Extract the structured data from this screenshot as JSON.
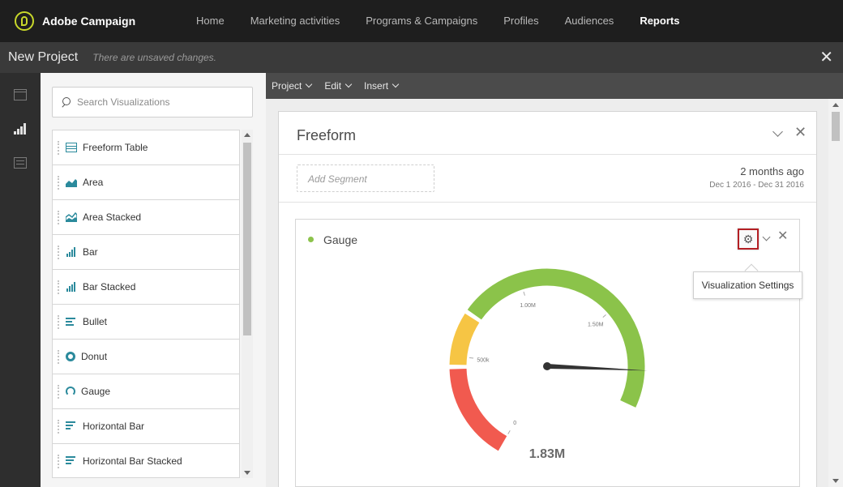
{
  "app": {
    "brand_name": "Adobe Campaign",
    "nav": [
      {
        "label": "Home",
        "active": false
      },
      {
        "label": "Marketing activities",
        "active": false
      },
      {
        "label": "Programs & Campaigns",
        "active": false
      },
      {
        "label": "Profiles",
        "active": false
      },
      {
        "label": "Audiences",
        "active": false
      },
      {
        "label": "Reports",
        "active": true
      }
    ]
  },
  "project": {
    "title": "New Project",
    "status": "There are unsaved changes.",
    "close_icon": "close-icon"
  },
  "rail": {
    "icons": [
      "panel-icon",
      "visualizations-icon",
      "components-icon"
    ],
    "active": "visualizations-icon"
  },
  "visualizations": {
    "search_placeholder": "Search Visualizations",
    "search_value": "",
    "items": [
      {
        "label": "Freeform Table",
        "icon": "freeform-table-icon"
      },
      {
        "label": "Area",
        "icon": "area-chart-icon"
      },
      {
        "label": "Area Stacked",
        "icon": "area-stacked-icon"
      },
      {
        "label": "Bar",
        "icon": "bar-chart-icon"
      },
      {
        "label": "Bar Stacked",
        "icon": "bar-stacked-icon"
      },
      {
        "label": "Bullet",
        "icon": "bullet-chart-icon"
      },
      {
        "label": "Donut",
        "icon": "donut-chart-icon"
      },
      {
        "label": "Gauge",
        "icon": "gauge-icon"
      },
      {
        "label": "Horizontal Bar",
        "icon": "horizontal-bar-icon"
      },
      {
        "label": "Horizontal Bar Stacked",
        "icon": "horizontal-bar-stacked-icon"
      }
    ]
  },
  "toolbar": {
    "menus": [
      "Project",
      "Edit",
      "Insert"
    ]
  },
  "freeform": {
    "title": "Freeform",
    "segment_placeholder": "Add Segment",
    "date_relative": "2 months ago",
    "date_range": "Dec 1 2016 - Dec 31 2016"
  },
  "gauge_panel": {
    "title": "Gauge",
    "tooltip": "Visualization Settings",
    "gear_icon": "gear-icon"
  },
  "chart_data": {
    "type": "gauge",
    "value": 1.83,
    "value_label": "1.83M",
    "unit": "M",
    "min": 0,
    "max": 2.0,
    "ticks": [
      {
        "value": 0,
        "label": "0"
      },
      {
        "value": 0.5,
        "label": "500k"
      },
      {
        "value": 1.0,
        "label": "1.00M"
      },
      {
        "value": 1.5,
        "label": "1.50M"
      }
    ],
    "bands": [
      {
        "from": 0,
        "to": 0.44,
        "color": "#f15a4f"
      },
      {
        "from": 0.46,
        "to": 0.7,
        "color": "#f6c544"
      },
      {
        "from": 0.72,
        "to": 2.0,
        "color": "#8bc34a"
      }
    ],
    "colors": {
      "status_dot": "#8cc34b",
      "accent": "#2b8a9c",
      "highlight": "#b41f24"
    }
  }
}
